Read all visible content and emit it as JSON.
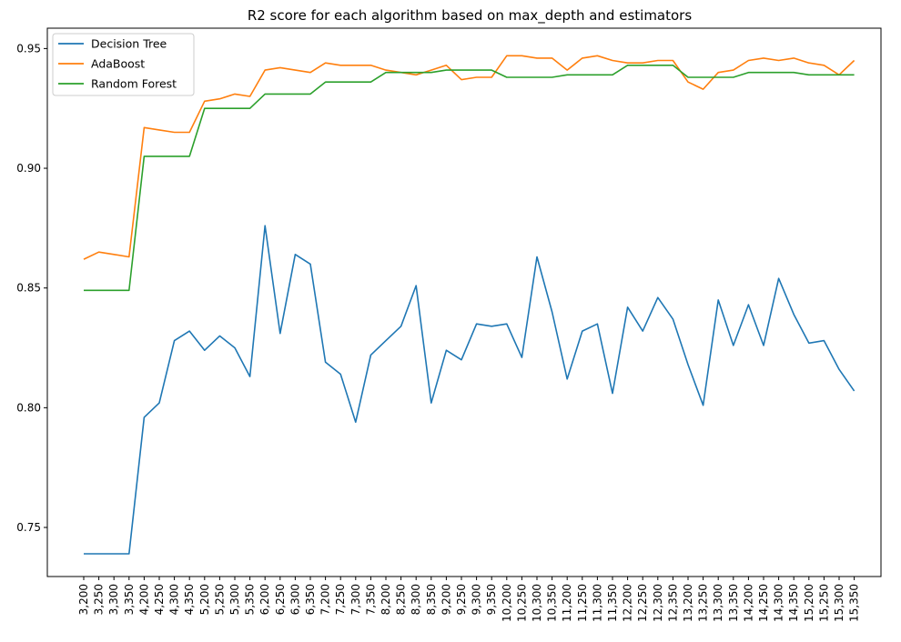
{
  "chart_data": {
    "type": "line",
    "title": "R2 score for each algorithm based on max_depth and estimators",
    "xlabel": "",
    "ylabel": "",
    "ylim": [
      0.7295,
      0.9585
    ],
    "yticks": [
      0.75,
      0.8,
      0.85,
      0.9,
      0.95
    ],
    "ytick_labels": [
      "0.75",
      "0.80",
      "0.85",
      "0.90",
      "0.95"
    ],
    "grid": false,
    "legend_position": "top-left",
    "categories": [
      "3,200",
      "3,250",
      "3,300",
      "3,350",
      "4,200",
      "4,250",
      "4,300",
      "4,350",
      "5,200",
      "5,250",
      "5,300",
      "5,350",
      "6,200",
      "6,250",
      "6,300",
      "6,350",
      "7,200",
      "7,250",
      "7,300",
      "7,350",
      "8,200",
      "8,250",
      "8,300",
      "8,350",
      "9,200",
      "9,250",
      "9,300",
      "9,350",
      "10,200",
      "10,250",
      "10,300",
      "10,350",
      "11,200",
      "11,250",
      "11,300",
      "11,350",
      "12,200",
      "12,250",
      "12,300",
      "12,350",
      "13,200",
      "13,250",
      "13,300",
      "13,350",
      "14,200",
      "14,250",
      "14,300",
      "14,350",
      "15,200",
      "15,250",
      "15,300",
      "15,350"
    ],
    "series": [
      {
        "name": "Decision Tree",
        "color": "#1f77b4",
        "values": [
          0.739,
          0.739,
          0.739,
          0.739,
          0.796,
          0.802,
          0.828,
          0.832,
          0.824,
          0.83,
          0.825,
          0.813,
          0.876,
          0.831,
          0.864,
          0.86,
          0.819,
          0.814,
          0.794,
          0.822,
          0.828,
          0.834,
          0.851,
          0.802,
          0.824,
          0.82,
          0.835,
          0.834,
          0.835,
          0.821,
          0.863,
          0.84,
          0.812,
          0.832,
          0.835,
          0.806,
          0.842,
          0.832,
          0.846,
          0.837,
          0.818,
          0.801,
          0.845,
          0.826,
          0.843,
          0.826,
          0.854,
          0.839,
          0.827,
          0.828,
          0.816,
          0.807
        ]
      },
      {
        "name": "AdaBoost",
        "color": "#ff7f0e",
        "values": [
          0.862,
          0.865,
          0.864,
          0.863,
          0.917,
          0.916,
          0.915,
          0.915,
          0.928,
          0.929,
          0.931,
          0.93,
          0.941,
          0.942,
          0.941,
          0.94,
          0.944,
          0.943,
          0.943,
          0.943,
          0.941,
          0.94,
          0.939,
          0.941,
          0.943,
          0.937,
          0.938,
          0.938,
          0.947,
          0.947,
          0.946,
          0.946,
          0.941,
          0.946,
          0.947,
          0.945,
          0.944,
          0.944,
          0.945,
          0.945,
          0.936,
          0.933,
          0.94,
          0.941,
          0.945,
          0.946,
          0.945,
          0.946,
          0.944,
          0.943,
          0.939,
          0.945
        ]
      },
      {
        "name": "Random Forest",
        "color": "#2ca02c",
        "values": [
          0.849,
          0.849,
          0.849,
          0.849,
          0.905,
          0.905,
          0.905,
          0.905,
          0.925,
          0.925,
          0.925,
          0.925,
          0.931,
          0.931,
          0.931,
          0.931,
          0.936,
          0.936,
          0.936,
          0.936,
          0.94,
          0.94,
          0.94,
          0.94,
          0.941,
          0.941,
          0.941,
          0.941,
          0.938,
          0.938,
          0.938,
          0.938,
          0.939,
          0.939,
          0.939,
          0.939,
          0.943,
          0.943,
          0.943,
          0.943,
          0.938,
          0.938,
          0.938,
          0.938,
          0.94,
          0.94,
          0.94,
          0.94,
          0.939,
          0.939,
          0.939,
          0.939
        ]
      }
    ]
  }
}
